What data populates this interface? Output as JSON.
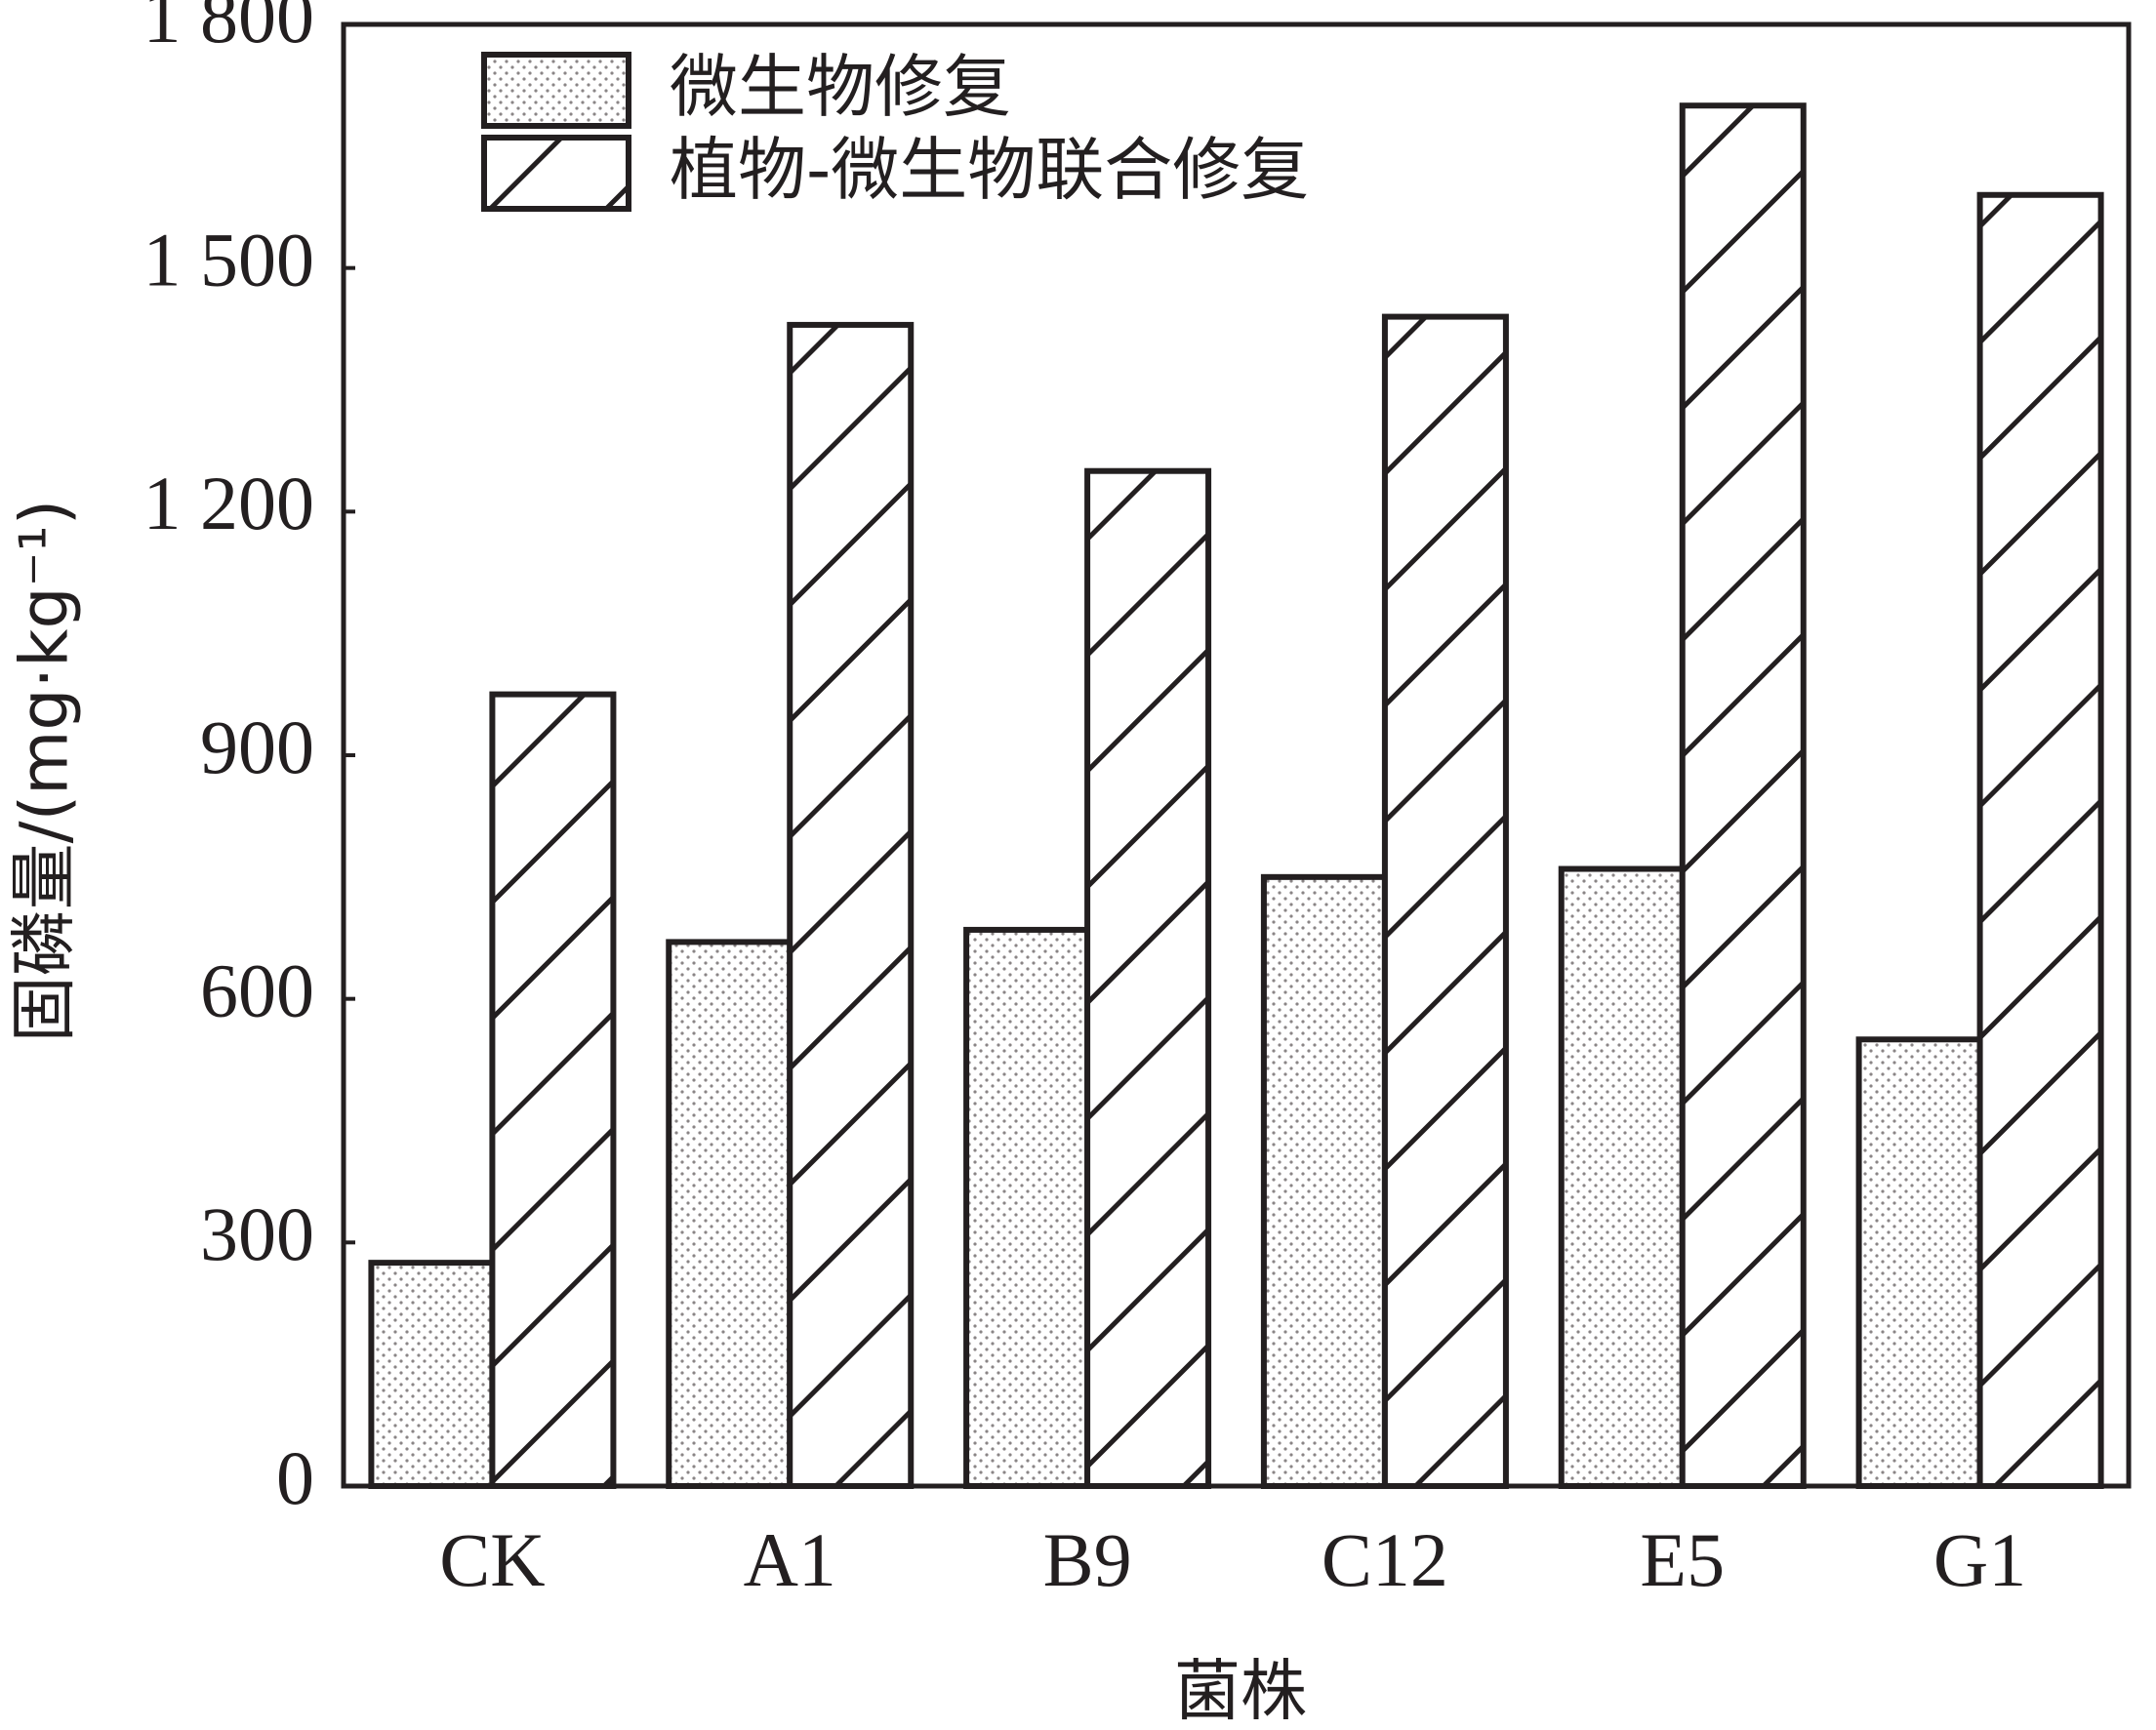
{
  "chart_data": {
    "type": "bar",
    "x_label": "菌株",
    "y_label": "固磷量/(mg·kg⁻¹)",
    "categories": [
      "CK",
      "A1",
      "B9",
      "C12",
      "E5",
      "G1"
    ],
    "series": [
      {
        "name": "微生物修复",
        "color": "#231f20",
        "pattern": "dots",
        "values": [
          275,
          670,
          685,
          750,
          760,
          550
        ]
      },
      {
        "name": "植物-微生物联合修复",
        "color": "#231f20",
        "pattern": "hatch",
        "values": [
          975,
          1430,
          1250,
          1440,
          1700,
          1590
        ]
      }
    ],
    "ylim": [
      0,
      1800
    ],
    "yticks": [
      0,
      300,
      600,
      900,
      {
        "value": 1200,
        "label": "1 200"
      },
      {
        "value": 1500,
        "label": "1 500"
      },
      {
        "value": 1800,
        "label": "1 800"
      }
    ],
    "legend": "upper left"
  }
}
